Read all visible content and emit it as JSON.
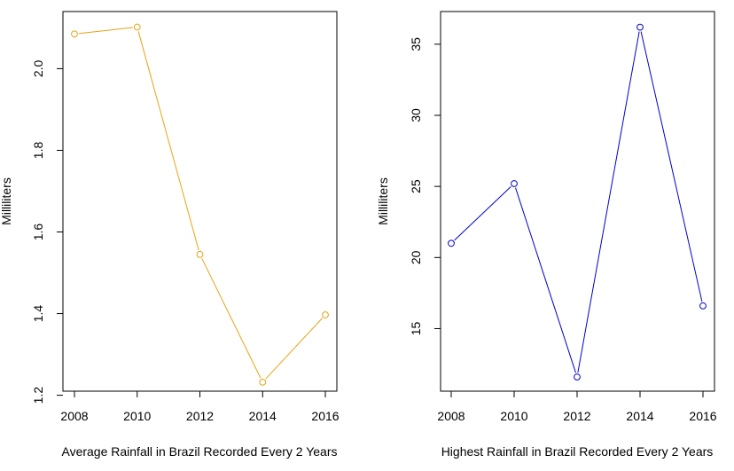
{
  "chart_data": [
    {
      "type": "line",
      "xlabel": "Average Rainfall in Brazil Recorded Every 2 Years",
      "ylabel": "Milliliters",
      "x": [
        2008,
        2010,
        2012,
        2014,
        2016
      ],
      "series": [
        {
          "values": [
            2.085,
            2.102,
            1.545,
            1.232,
            1.397
          ],
          "color": "#e8a317"
        }
      ],
      "xlim": [
        2008,
        2016
      ],
      "ylim": [
        1.21,
        2.14
      ],
      "x_ticks": [
        "2008",
        "2010",
        "2012",
        "2014",
        "2016"
      ],
      "y_ticks": [
        "1.2",
        "1.4",
        "1.6",
        "1.8",
        "2.0"
      ],
      "marker": "open-circle",
      "grid": false
    },
    {
      "type": "line",
      "xlabel": "Highest Rainfall in Brazil Recorded Every 2 Years",
      "ylabel": "Milliliters",
      "x": [
        2008,
        2010,
        2012,
        2014,
        2016
      ],
      "series": [
        {
          "values": [
            21.0,
            25.2,
            11.6,
            36.2,
            16.6
          ],
          "color": "#0000cc"
        }
      ],
      "xlim": [
        2008,
        2016
      ],
      "ylim": [
        10.6,
        37.3
      ],
      "x_ticks": [
        "2008",
        "2010",
        "2012",
        "2014",
        "2016"
      ],
      "y_ticks": [
        "15",
        "20",
        "25",
        "30",
        "35"
      ],
      "marker": "open-circle",
      "grid": false
    }
  ]
}
